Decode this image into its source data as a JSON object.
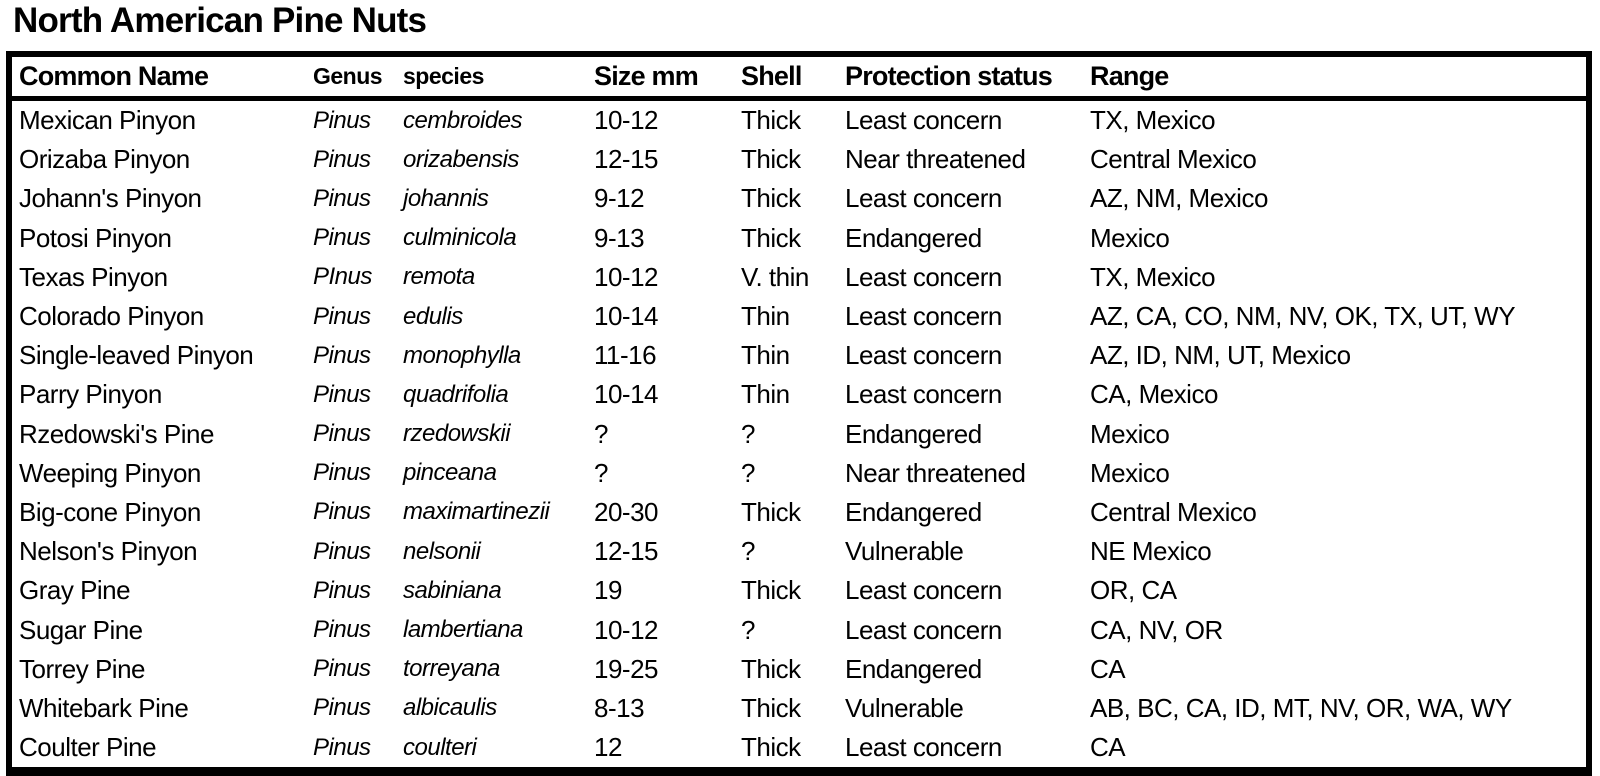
{
  "page": {
    "title": "North American Pine Nuts"
  },
  "colors": {
    "text": "#000000",
    "background": "#ffffff",
    "border": "#000000"
  },
  "table": {
    "headers": [
      {
        "key": "common_name",
        "label": "Common Name"
      },
      {
        "key": "genus",
        "label": "Genus"
      },
      {
        "key": "species",
        "label": "species"
      },
      {
        "key": "size_mm",
        "label": "Size mm"
      },
      {
        "key": "shell",
        "label": "Shell"
      },
      {
        "key": "protection_status",
        "label": "Protection status"
      },
      {
        "key": "range",
        "label": "Range"
      }
    ],
    "rows": [
      {
        "common_name": "Mexican Pinyon",
        "genus": "Pinus",
        "species": "cembroides",
        "size_mm": "10-12",
        "shell": "Thick",
        "protection_status": "Least concern",
        "range": "TX, Mexico"
      },
      {
        "common_name": "Orizaba Pinyon",
        "genus": "Pinus",
        "species": "orizabensis",
        "size_mm": "12-15",
        "shell": "Thick",
        "protection_status": "Near threatened",
        "range": "Central Mexico"
      },
      {
        "common_name": "Johann's Pinyon",
        "genus": "Pinus",
        "species": "johannis",
        "size_mm": "9-12",
        "shell": "Thick",
        "protection_status": "Least concern",
        "range": "AZ, NM, Mexico"
      },
      {
        "common_name": "Potosi Pinyon",
        "genus": "Pinus",
        "species": "culminicola",
        "size_mm": "9-13",
        "shell": "Thick",
        "protection_status": "Endangered",
        "range": "Mexico"
      },
      {
        "common_name": "Texas Pinyon",
        "genus": "PInus",
        "species": "remota",
        "size_mm": "10-12",
        "shell": "V. thin",
        "protection_status": "Least concern",
        "range": "TX, Mexico"
      },
      {
        "common_name": "Colorado Pinyon",
        "genus": "Pinus",
        "species": "edulis",
        "size_mm": "10-14",
        "shell": "Thin",
        "protection_status": "Least concern",
        "range": "AZ, CA, CO, NM, NV, OK, TX, UT, WY"
      },
      {
        "common_name": "Single-leaved Pinyon",
        "genus": "Pinus",
        "species": "monophylla",
        "size_mm": "11-16",
        "shell": "Thin",
        "protection_status": "Least concern",
        "range": "AZ, ID, NM, UT, Mexico"
      },
      {
        "common_name": "Parry Pinyon",
        "genus": "Pinus",
        "species": "quadrifolia",
        "size_mm": "10-14",
        "shell": "Thin",
        "protection_status": "Least concern",
        "range": "CA, Mexico"
      },
      {
        "common_name": "Rzedowski's Pine",
        "genus": "Pinus",
        "species": "rzedowskii",
        "size_mm": "?",
        "shell": "?",
        "protection_status": "Endangered",
        "range": "Mexico"
      },
      {
        "common_name": "Weeping Pinyon",
        "genus": "Pinus",
        "species": "pinceana",
        "size_mm": "?",
        "shell": "?",
        "protection_status": "Near threatened",
        "range": "Mexico"
      },
      {
        "common_name": "Big-cone Pinyon",
        "genus": "Pinus",
        "species": "maximartinezii",
        "size_mm": "20-30",
        "shell": "Thick",
        "protection_status": "Endangered",
        "range": "Central Mexico"
      },
      {
        "common_name": "Nelson's Pinyon",
        "genus": "Pinus",
        "species": "nelsonii",
        "size_mm": "12-15",
        "shell": "?",
        "protection_status": "Vulnerable",
        "range": "NE Mexico"
      },
      {
        "common_name": "Gray Pine",
        "genus": "Pinus",
        "species": "sabiniana",
        "size_mm": "19",
        "shell": "Thick",
        "protection_status": "Least concern",
        "range": "OR, CA"
      },
      {
        "common_name": "Sugar Pine",
        "genus": "Pinus",
        "species": "lambertiana",
        "size_mm": "10-12",
        "shell": "?",
        "protection_status": "Least concern",
        "range": "CA, NV, OR"
      },
      {
        "common_name": "Torrey Pine",
        "genus": "Pinus",
        "species": "torreyana",
        "size_mm": "19-25",
        "shell": "Thick",
        "protection_status": "Endangered",
        "range": "CA"
      },
      {
        "common_name": "Whitebark Pine",
        "genus": "Pinus",
        "species": "albicaulis",
        "size_mm": "8-13",
        "shell": "Thick",
        "protection_status": "Vulnerable",
        "range": "AB, BC, CA, ID, MT, NV, OR, WA, WY"
      },
      {
        "common_name": "Coulter Pine",
        "genus": "Pinus",
        "species": "coulteri",
        "size_mm": "12",
        "shell": "Thick",
        "protection_status": "Least concern",
        "range": "CA"
      }
    ]
  }
}
